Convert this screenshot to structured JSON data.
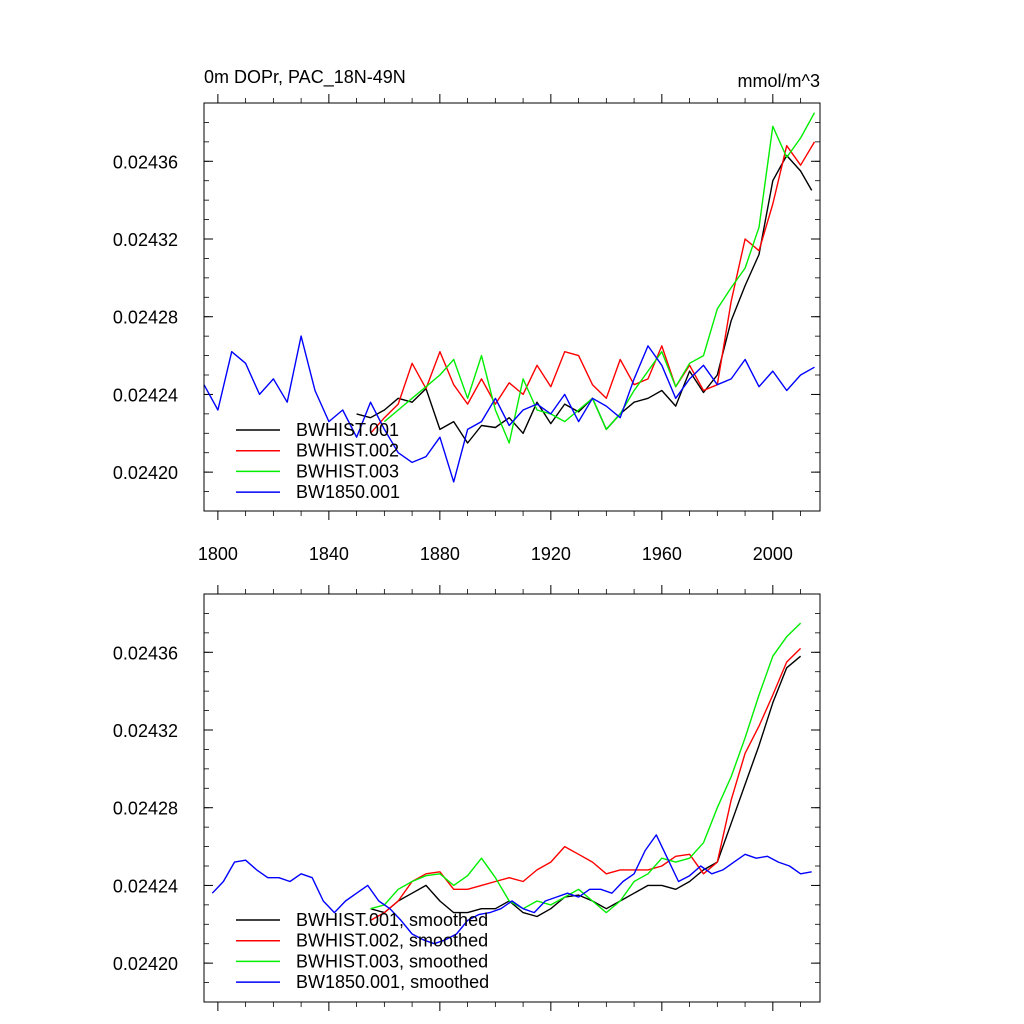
{
  "chart_data": [
    {
      "type": "line",
      "title": "0m DOPr, PAC_18N-49N",
      "units": "mmol/m^3",
      "xlim": [
        1795,
        2017
      ],
      "ylim": [
        0.02418,
        0.02439
      ],
      "xticks": [
        "1800",
        "1840",
        "1880",
        "1920",
        "1960",
        "2000"
      ],
      "yticks": [
        "0.02420",
        "0.02424",
        "0.02428",
        "0.02432",
        "0.02436"
      ],
      "legend_position": "bottom-left",
      "series": [
        {
          "name": "BWHIST.001",
          "color": "#000000",
          "x": [
            1850,
            1855,
            1860,
            1865,
            1870,
            1875,
            1880,
            1885,
            1890,
            1895,
            1900,
            1905,
            1910,
            1915,
            1920,
            1925,
            1930,
            1935,
            1940,
            1945,
            1950,
            1955,
            1960,
            1965,
            1970,
            1975,
            1980,
            1985,
            1990,
            1995,
            2000,
            2005,
            2010,
            2014
          ],
          "y": [
            0.02423,
            0.024228,
            0.024232,
            0.024238,
            0.024236,
            0.024243,
            0.024222,
            0.024226,
            0.024215,
            0.024224,
            0.024223,
            0.024228,
            0.02422,
            0.024236,
            0.024225,
            0.024235,
            0.024231,
            0.024238,
            0.024222,
            0.02423,
            0.024236,
            0.024238,
            0.024242,
            0.024234,
            0.024252,
            0.024241,
            0.02425,
            0.024278,
            0.024296,
            0.024312,
            0.02435,
            0.024363,
            0.024355,
            0.024345
          ]
        },
        {
          "name": "BWHIST.002",
          "color": "#ff0000",
          "x": [
            1855,
            1860,
            1865,
            1870,
            1875,
            1880,
            1885,
            1890,
            1895,
            1900,
            1905,
            1910,
            1915,
            1920,
            1925,
            1930,
            1935,
            1940,
            1945,
            1950,
            1955,
            1960,
            1965,
            1970,
            1975,
            1980,
            1985,
            1990,
            1995,
            2000,
            2005,
            2010,
            2015
          ],
          "y": [
            0.02422,
            0.024228,
            0.024235,
            0.024256,
            0.024243,
            0.024262,
            0.024245,
            0.024235,
            0.024248,
            0.024235,
            0.024246,
            0.02424,
            0.024255,
            0.024244,
            0.024262,
            0.02426,
            0.024245,
            0.024238,
            0.024258,
            0.024245,
            0.024248,
            0.024265,
            0.024244,
            0.024255,
            0.024242,
            0.024245,
            0.024288,
            0.02432,
            0.024314,
            0.024338,
            0.024368,
            0.024358,
            0.02437
          ]
        },
        {
          "name": "BWHIST.003",
          "color": "#00ee00",
          "x": [
            1860,
            1865,
            1870,
            1875,
            1880,
            1885,
            1890,
            1895,
            1900,
            1905,
            1910,
            1915,
            1920,
            1925,
            1930,
            1935,
            1940,
            1945,
            1950,
            1955,
            1960,
            1965,
            1970,
            1975,
            1980,
            1985,
            1990,
            1995,
            2000,
            2005,
            2010,
            2015
          ],
          "y": [
            0.024226,
            0.024232,
            0.024238,
            0.024244,
            0.02425,
            0.024258,
            0.024238,
            0.02426,
            0.024232,
            0.024215,
            0.024248,
            0.024232,
            0.02423,
            0.024226,
            0.024232,
            0.024238,
            0.024222,
            0.02423,
            0.024242,
            0.024252,
            0.024262,
            0.024244,
            0.024256,
            0.02426,
            0.024284,
            0.024295,
            0.024305,
            0.024326,
            0.024378,
            0.024362,
            0.024372,
            0.024385
          ]
        },
        {
          "name": "BW1850.001",
          "color": "#0000ff",
          "x": [
            1795,
            1800,
            1805,
            1810,
            1815,
            1820,
            1825,
            1830,
            1835,
            1840,
            1845,
            1850,
            1855,
            1860,
            1865,
            1870,
            1875,
            1880,
            1885,
            1890,
            1895,
            1900,
            1905,
            1910,
            1915,
            1920,
            1925,
            1930,
            1935,
            1940,
            1945,
            1950,
            1955,
            1960,
            1965,
            1970,
            1975,
            1980,
            1985,
            1990,
            1995,
            2000,
            2005,
            2010,
            2015
          ],
          "y": [
            0.024245,
            0.024232,
            0.024262,
            0.024256,
            0.02424,
            0.024248,
            0.024236,
            0.02427,
            0.024242,
            0.024226,
            0.024232,
            0.024218,
            0.024236,
            0.024222,
            0.02421,
            0.024205,
            0.024208,
            0.024218,
            0.024195,
            0.024222,
            0.024226,
            0.024238,
            0.024224,
            0.024232,
            0.024235,
            0.02423,
            0.02424,
            0.024226,
            0.024238,
            0.024234,
            0.024228,
            0.024248,
            0.024265,
            0.024255,
            0.024238,
            0.024248,
            0.024255,
            0.024245,
            0.024248,
            0.024258,
            0.024244,
            0.024252,
            0.024242,
            0.02425,
            0.024254
          ]
        }
      ]
    },
    {
      "type": "line",
      "title": "",
      "xlim": [
        1795,
        2017
      ],
      "ylim": [
        0.02418,
        0.02439
      ],
      "xticks": [],
      "yticks": [
        "0.02420",
        "0.02424",
        "0.02428",
        "0.02432",
        "0.02436"
      ],
      "legend_position": "bottom-left",
      "series": [
        {
          "name": "BWHIST.001, smoothed",
          "color": "#000000",
          "x": [
            1855,
            1860,
            1865,
            1870,
            1875,
            1880,
            1885,
            1890,
            1895,
            1900,
            1905,
            1910,
            1915,
            1920,
            1925,
            1930,
            1935,
            1940,
            1945,
            1950,
            1955,
            1960,
            1965,
            1970,
            1975,
            1980,
            1985,
            1990,
            1995,
            2000,
            2005,
            2010
          ],
          "y": [
            0.024228,
            0.024226,
            0.024232,
            0.024236,
            0.02424,
            0.024232,
            0.024226,
            0.024226,
            0.024228,
            0.024228,
            0.024232,
            0.024226,
            0.024224,
            0.024228,
            0.024234,
            0.024235,
            0.024232,
            0.024228,
            0.024232,
            0.024236,
            0.02424,
            0.02424,
            0.024238,
            0.024242,
            0.024248,
            0.024252,
            0.024272,
            0.024292,
            0.024312,
            0.024334,
            0.024352,
            0.024358
          ]
        },
        {
          "name": "BWHIST.002, smoothed",
          "color": "#ff0000",
          "x": [
            1855,
            1860,
            1865,
            1870,
            1875,
            1880,
            1885,
            1890,
            1895,
            1900,
            1905,
            1910,
            1915,
            1920,
            1925,
            1930,
            1935,
            1940,
            1945,
            1950,
            1955,
            1960,
            1965,
            1970,
            1975,
            1980,
            1985,
            1990,
            1995,
            2000,
            2005,
            2010
          ],
          "y": [
            0.024222,
            0.024226,
            0.024232,
            0.024242,
            0.024246,
            0.024247,
            0.024238,
            0.024238,
            0.02424,
            0.024242,
            0.024244,
            0.024242,
            0.024248,
            0.024252,
            0.02426,
            0.024256,
            0.024252,
            0.024246,
            0.024248,
            0.024248,
            0.024248,
            0.02425,
            0.024255,
            0.024256,
            0.024246,
            0.024252,
            0.024284,
            0.024308,
            0.024322,
            0.024338,
            0.024355,
            0.024362
          ]
        },
        {
          "name": "BWHIST.003, smoothed",
          "color": "#00ee00",
          "x": [
            1855,
            1860,
            1865,
            1870,
            1875,
            1880,
            1885,
            1890,
            1895,
            1900,
            1905,
            1910,
            1915,
            1920,
            1925,
            1930,
            1935,
            1940,
            1945,
            1950,
            1955,
            1960,
            1965,
            1970,
            1975,
            1980,
            1985,
            1990,
            1995,
            2000,
            2005,
            2010
          ],
          "y": [
            0.024228,
            0.02423,
            0.024238,
            0.024242,
            0.024245,
            0.024246,
            0.02424,
            0.024245,
            0.024254,
            0.024244,
            0.024232,
            0.024228,
            0.024232,
            0.02423,
            0.024234,
            0.024238,
            0.024232,
            0.024226,
            0.024232,
            0.024242,
            0.024246,
            0.024254,
            0.024252,
            0.024254,
            0.024262,
            0.02428,
            0.024296,
            0.024316,
            0.024338,
            0.024358,
            0.024368,
            0.024375
          ]
        },
        {
          "name": "BW1850.001, smoothed",
          "color": "#0000ff",
          "x": [
            1798,
            1802,
            1806,
            1810,
            1814,
            1818,
            1822,
            1826,
            1830,
            1834,
            1838,
            1842,
            1846,
            1850,
            1854,
            1858,
            1862,
            1866,
            1870,
            1874,
            1878,
            1882,
            1886,
            1890,
            1894,
            1898,
            1902,
            1906,
            1910,
            1914,
            1918,
            1922,
            1926,
            1930,
            1934,
            1938,
            1942,
            1946,
            1950,
            1954,
            1958,
            1962,
            1966,
            1970,
            1974,
            1978,
            1982,
            1986,
            1990,
            1994,
            1998,
            2002,
            2006,
            2010,
            2014
          ],
          "y": [
            0.024236,
            0.024242,
            0.024252,
            0.024253,
            0.024248,
            0.024244,
            0.024244,
            0.024242,
            0.024246,
            0.024244,
            0.024232,
            0.024226,
            0.024232,
            0.024236,
            0.02424,
            0.024232,
            0.024228,
            0.024222,
            0.024215,
            0.024212,
            0.02421,
            0.024212,
            0.024215,
            0.024222,
            0.024225,
            0.024226,
            0.024228,
            0.024232,
            0.024228,
            0.024226,
            0.024232,
            0.024234,
            0.024236,
            0.024234,
            0.024238,
            0.024238,
            0.024236,
            0.024242,
            0.024246,
            0.024258,
            0.024266,
            0.024254,
            0.024242,
            0.024245,
            0.02425,
            0.024246,
            0.024248,
            0.024252,
            0.024256,
            0.024254,
            0.024255,
            0.024252,
            0.02425,
            0.024246,
            0.024247
          ]
        }
      ]
    }
  ]
}
